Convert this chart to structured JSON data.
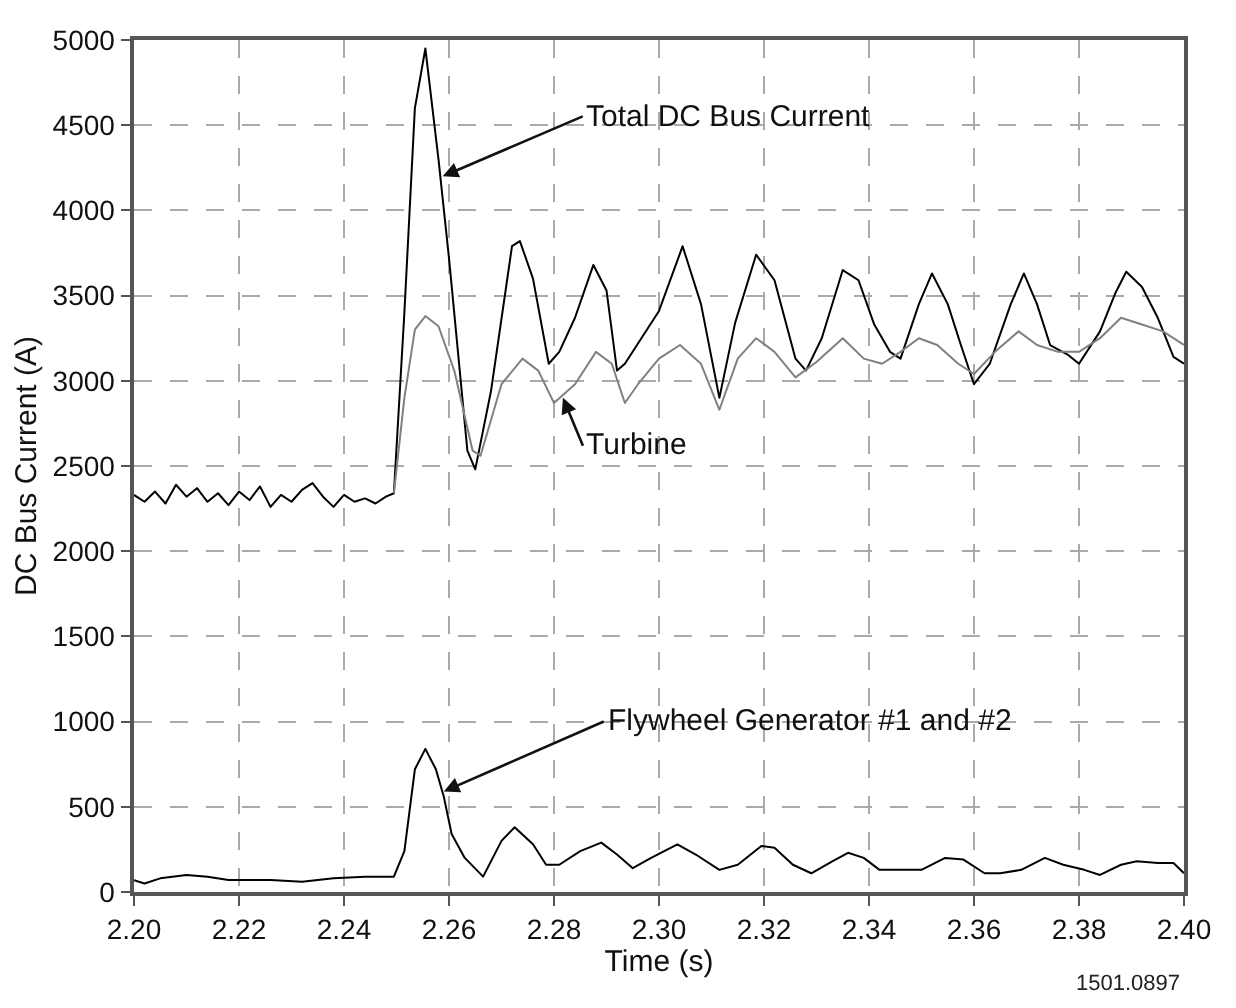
{
  "chart_data": {
    "type": "line",
    "xlabel": "Time (s)",
    "ylabel": "DC Bus Current (A)",
    "xlim": [
      2.2,
      2.4
    ],
    "xticks": [
      {
        "value": 2.2,
        "label": "2.20"
      },
      2.22,
      2.24,
      2.26,
      2.28,
      {
        "value": 2.3,
        "label": "2.30"
      },
      2.32,
      2.34,
      2.36,
      2.38,
      {
        "value": 2.4,
        "label": "2.40"
      }
    ],
    "ylim": [
      0,
      5000
    ],
    "yticks": [
      0,
      500,
      1000,
      1500,
      2000,
      2500,
      3000,
      3500,
      4000,
      4500,
      5000
    ],
    "grid": true,
    "marker": "none",
    "line_style": "solid",
    "series": [
      {
        "color": "#000000",
        "x": [
          2.2,
          2.202,
          2.204,
          2.206,
          2.208,
          2.21,
          2.212,
          2.214,
          2.216,
          2.218,
          2.22,
          2.222,
          2.224,
          2.226,
          2.228,
          2.23,
          2.232,
          2.234,
          2.236,
          2.238,
          2.24,
          2.242,
          2.244,
          2.246,
          2.248,
          2.2495,
          2.2515,
          2.2535,
          2.2555,
          2.258,
          2.26,
          2.2635,
          2.265,
          2.268,
          2.272,
          2.2735,
          2.276,
          2.279,
          2.281,
          2.284,
          2.2875,
          2.29,
          2.292,
          2.2935,
          2.3,
          2.3045,
          2.308,
          2.3115,
          2.3145,
          2.3185,
          2.322,
          2.326,
          2.328,
          2.331,
          2.335,
          2.338,
          2.341,
          2.344,
          2.346,
          2.3495,
          2.352,
          2.355,
          2.3575,
          2.36,
          2.363,
          2.367,
          2.3695,
          2.372,
          2.3745,
          2.378,
          2.38,
          2.384,
          2.387,
          2.389,
          2.392,
          2.395,
          2.398,
          2.4
        ],
        "values": [
          2330,
          2290,
          2350,
          2280,
          2390,
          2320,
          2370,
          2290,
          2340,
          2270,
          2350,
          2300,
          2380,
          2260,
          2330,
          2290,
          2360,
          2400,
          2320,
          2260,
          2330,
          2290,
          2310,
          2280,
          2320,
          2340,
          3400,
          4600,
          4950,
          4300,
          3720,
          2590,
          2480,
          2940,
          3790,
          3820,
          3600,
          3100,
          3170,
          3370,
          3680,
          3530,
          3060,
          3100,
          3410,
          3790,
          3450,
          2900,
          3340,
          3740,
          3590,
          3130,
          3060,
          3250,
          3650,
          3590,
          3330,
          3170,
          3130,
          3450,
          3630,
          3450,
          3210,
          2980,
          3100,
          3450,
          3630,
          3450,
          3210,
          3150,
          3100,
          3290,
          3520,
          3640,
          3550,
          3370,
          3140,
          3100
        ]
      },
      {
        "color": "#808080",
        "x": [
          2.2495,
          2.2515,
          2.2535,
          2.2555,
          2.258,
          2.261,
          2.2645,
          2.266,
          2.27,
          2.274,
          2.277,
          2.28,
          2.284,
          2.288,
          2.291,
          2.2935,
          2.296,
          2.3,
          2.304,
          2.308,
          2.3115,
          2.315,
          2.3185,
          2.322,
          2.326,
          2.33,
          2.335,
          2.339,
          2.3425,
          2.346,
          2.3495,
          2.353,
          2.357,
          2.36,
          2.364,
          2.3685,
          2.372,
          2.376,
          2.38,
          2.384,
          2.388,
          2.392,
          2.396,
          2.4
        ],
        "values": [
          2340,
          2900,
          3300,
          3380,
          3320,
          3060,
          2590,
          2560,
          2980,
          3130,
          3060,
          2870,
          2980,
          3170,
          3100,
          2870,
          2980,
          3130,
          3210,
          3100,
          2830,
          3130,
          3250,
          3170,
          3020,
          3110,
          3250,
          3130,
          3100,
          3170,
          3250,
          3210,
          3100,
          3040,
          3170,
          3290,
          3210,
          3170,
          3170,
          3250,
          3370,
          3330,
          3290,
          3210
        ]
      },
      {
        "color": "#000000",
        "x": [
          2.2,
          2.202,
          2.205,
          2.21,
          2.214,
          2.218,
          2.222,
          2.226,
          2.232,
          2.238,
          2.244,
          2.2495,
          2.2515,
          2.2535,
          2.2555,
          2.2575,
          2.259,
          2.2605,
          2.263,
          2.2665,
          2.27,
          2.2725,
          2.276,
          2.2785,
          2.281,
          2.285,
          2.289,
          2.292,
          2.295,
          2.2985,
          2.3035,
          2.307,
          2.3115,
          2.315,
          2.3195,
          2.322,
          2.3255,
          2.329,
          2.333,
          2.336,
          2.339,
          2.342,
          2.3455,
          2.35,
          2.3545,
          2.358,
          2.362,
          2.365,
          2.369,
          2.3735,
          2.377,
          2.381,
          2.384,
          2.388,
          2.391,
          2.395,
          2.398,
          2.4
        ],
        "values": [
          70,
          50,
          80,
          100,
          90,
          70,
          70,
          70,
          60,
          80,
          90,
          90,
          240,
          720,
          840,
          720,
          560,
          340,
          200,
          90,
          300,
          380,
          280,
          160,
          160,
          240,
          290,
          220,
          140,
          200,
          280,
          220,
          130,
          160,
          270,
          260,
          160,
          110,
          180,
          230,
          200,
          130,
          130,
          130,
          200,
          190,
          110,
          110,
          130,
          200,
          160,
          130,
          100,
          160,
          180,
          170,
          170,
          110
        ]
      }
    ],
    "annotations": [
      {
        "text": "Total DC Bus Current",
        "x": 2.2588,
        "y": 4200
      },
      {
        "text": "Turbine",
        "x": 2.2817,
        "y": 2900
      },
      {
        "text": "Flywheel Generator #1 and #2",
        "x": 2.259,
        "y": 590
      },
      "1501.0897"
    ]
  }
}
